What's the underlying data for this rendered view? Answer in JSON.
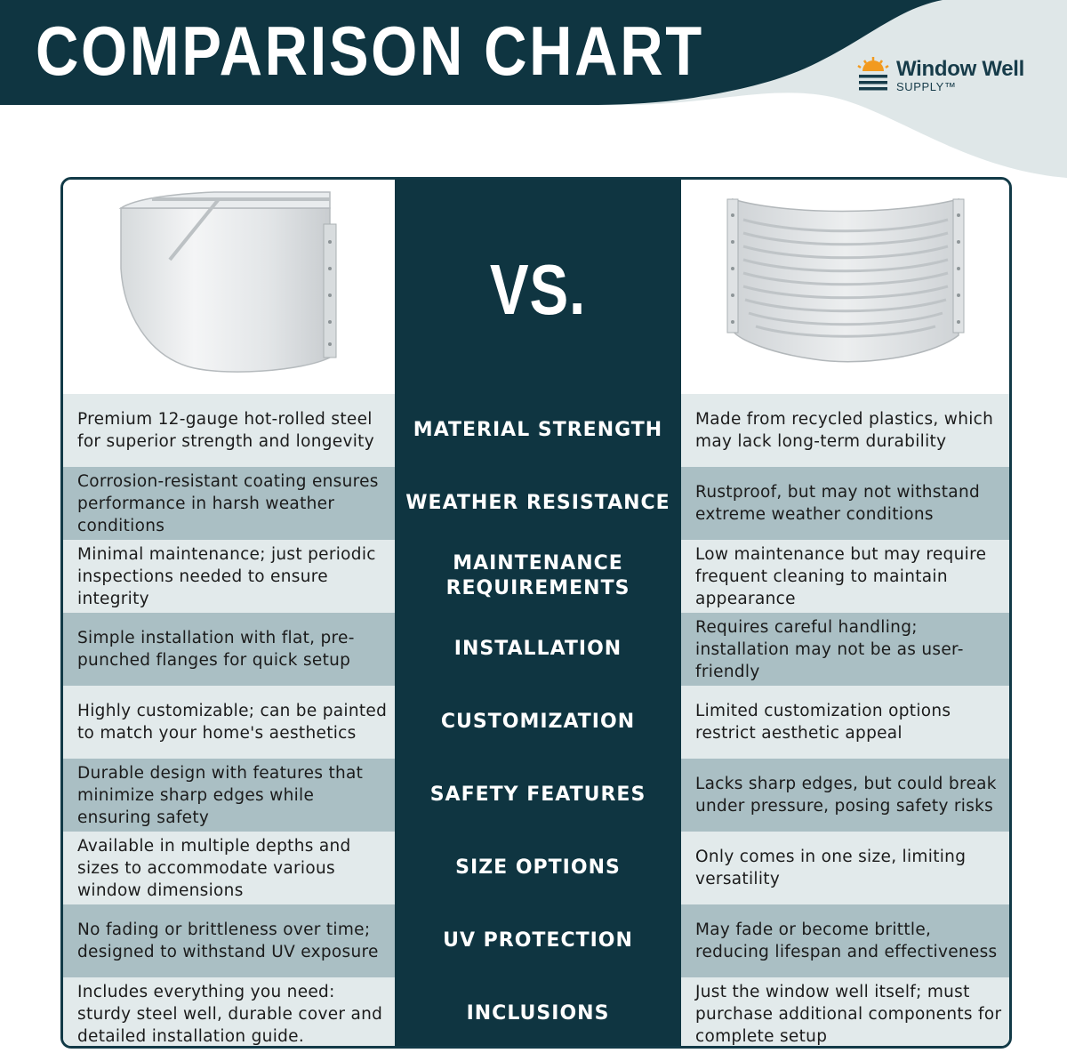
{
  "header": {
    "title": "COMPARISON CHART",
    "brand_name": "Window Well",
    "brand_sub": "SUPPLY™",
    "logo_icon": "sun-lines-logo-icon",
    "colors": {
      "navy": "#0f3541",
      "pale": "#dfe7e8",
      "accent_orange": "#f29a1f"
    }
  },
  "table": {
    "vs_label": "VS.",
    "left_image": "steel-window-well-image",
    "right_image": "plastic-window-well-image",
    "rows": [
      {
        "left": "Premium 12-gauge hot-rolled steel for superior strength and longevity",
        "feature": "MATERIAL STRENGTH",
        "right": "Made from recycled plastics, which may lack long-term durability"
      },
      {
        "left": "Corrosion-resistant coating ensures performance in harsh weather conditions",
        "feature": "WEATHER RESISTANCE",
        "right": "Rustproof, but may not withstand extreme weather conditions"
      },
      {
        "left": "Minimal maintenance; just periodic inspections needed to ensure integrity",
        "feature": "MAINTENANCE REQUIREMENTS",
        "right": "Low maintenance but may require frequent cleaning to maintain appearance"
      },
      {
        "left": "Simple installation with flat, pre-punched flanges for quick setup",
        "feature": "INSTALLATION",
        "right": "Requires careful handling; installation may not be as user-friendly"
      },
      {
        "left": "Highly customizable; can be painted to match your home's aesthetics",
        "feature": "CUSTOMIZATION",
        "right": "Limited customization options restrict aesthetic appeal"
      },
      {
        "left": "Durable design with features that minimize sharp edges while ensuring safety",
        "feature": "SAFETY FEATURES",
        "right": "Lacks sharp edges, but could break under pressure, posing safety risks"
      },
      {
        "left": "Available in multiple depths and sizes to accommodate various window dimensions",
        "feature": "SIZE OPTIONS",
        "right": "Only comes in one size, limiting versatility"
      },
      {
        "left": "No fading or brittleness over time; designed to withstand UV exposure",
        "feature": "UV PROTECTION",
        "right": "May fade or become brittle, reducing lifespan and effectiveness"
      },
      {
        "left": "Includes everything you need: sturdy steel well, durable cover and detailed installation guide.",
        "feature": "INCLUSIONS",
        "right": "Just the window well itself; must purchase additional components for complete setup"
      }
    ]
  }
}
